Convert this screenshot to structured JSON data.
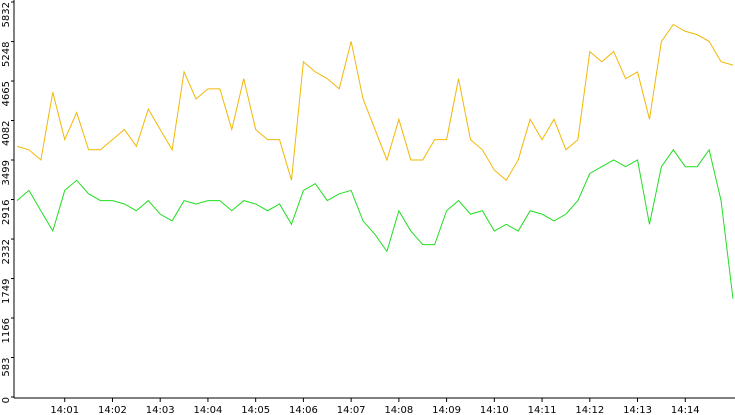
{
  "chart_data": {
    "type": "line",
    "x": [
      0,
      0.25,
      0.5,
      0.75,
      1,
      1.25,
      1.5,
      1.75,
      2,
      2.25,
      2.5,
      2.75,
      3,
      3.25,
      3.5,
      3.75,
      4,
      4.25,
      4.5,
      4.75,
      5,
      5.25,
      5.5,
      5.75,
      6,
      6.25,
      6.5,
      6.75,
      7,
      7.25,
      7.5,
      7.75,
      8,
      8.25,
      8.5,
      8.75,
      9,
      9.25,
      9.5,
      9.75,
      10,
      10.25,
      10.5,
      10.75,
      11,
      11.25,
      11.5,
      11.75,
      12,
      12.25,
      12.5,
      12.75,
      13,
      13.25,
      13.5,
      13.75,
      14,
      14.25,
      14.5,
      14.75,
      15
    ],
    "xlim": [
      0,
      15
    ],
    "xticks": [
      {
        "value": 1,
        "label": "14:01"
      },
      {
        "value": 2,
        "label": "14:02"
      },
      {
        "value": 3,
        "label": "14:03"
      },
      {
        "value": 4,
        "label": "14:04"
      },
      {
        "value": 5,
        "label": "14:05"
      },
      {
        "value": 6,
        "label": "14:06"
      },
      {
        "value": 7,
        "label": "14:07"
      },
      {
        "value": 8,
        "label": "14:08"
      },
      {
        "value": 9,
        "label": "14:09"
      },
      {
        "value": 10,
        "label": "14:10"
      },
      {
        "value": 11,
        "label": "14:11"
      },
      {
        "value": 12,
        "label": "14:12"
      },
      {
        "value": 13,
        "label": "14:13"
      },
      {
        "value": 14,
        "label": "14:14"
      }
    ],
    "ylim": [
      0,
      5832
    ],
    "yticks": [
      0,
      583,
      1166,
      1749,
      2332,
      2916,
      3499,
      4082,
      4665,
      5248,
      5832
    ],
    "series": [
      {
        "color": "#f2b705",
        "values": [
          3700,
          3650,
          3500,
          4500,
          3800,
          4200,
          3650,
          3650,
          3800,
          3950,
          3700,
          4250,
          3950,
          3650,
          4800,
          4400,
          4550,
          4550,
          3950,
          4700,
          3950,
          3800,
          3800,
          3200,
          4950,
          4800,
          4700,
          4550,
          5250,
          4400,
          3950,
          3500,
          4100,
          3500,
          3500,
          3800,
          3800,
          4700,
          3800,
          3650,
          3350,
          3200,
          3500,
          4100,
          3800,
          4100,
          3650,
          3800,
          5100,
          4950,
          5100,
          4700,
          4800,
          4100,
          5250,
          5500,
          5400,
          5350,
          5250,
          4950,
          4900
        ]
      },
      {
        "color": "#22dd22",
        "values": [
          2900,
          3050,
          2750,
          2450,
          3050,
          3200,
          3000,
          2900,
          2900,
          2850,
          2750,
          2900,
          2700,
          2600,
          2900,
          2850,
          2900,
          2900,
          2750,
          2900,
          2850,
          2750,
          2850,
          2550,
          3050,
          3150,
          2900,
          3000,
          3050,
          2600,
          2400,
          2150,
          2750,
          2450,
          2250,
          2250,
          2750,
          2900,
          2700,
          2750,
          2450,
          2550,
          2450,
          2750,
          2700,
          2600,
          2700,
          2900,
          3300,
          3400,
          3500,
          3400,
          3500,
          2550,
          3400,
          3650,
          3400,
          3400,
          3650,
          2900,
          1450
        ]
      }
    ]
  }
}
